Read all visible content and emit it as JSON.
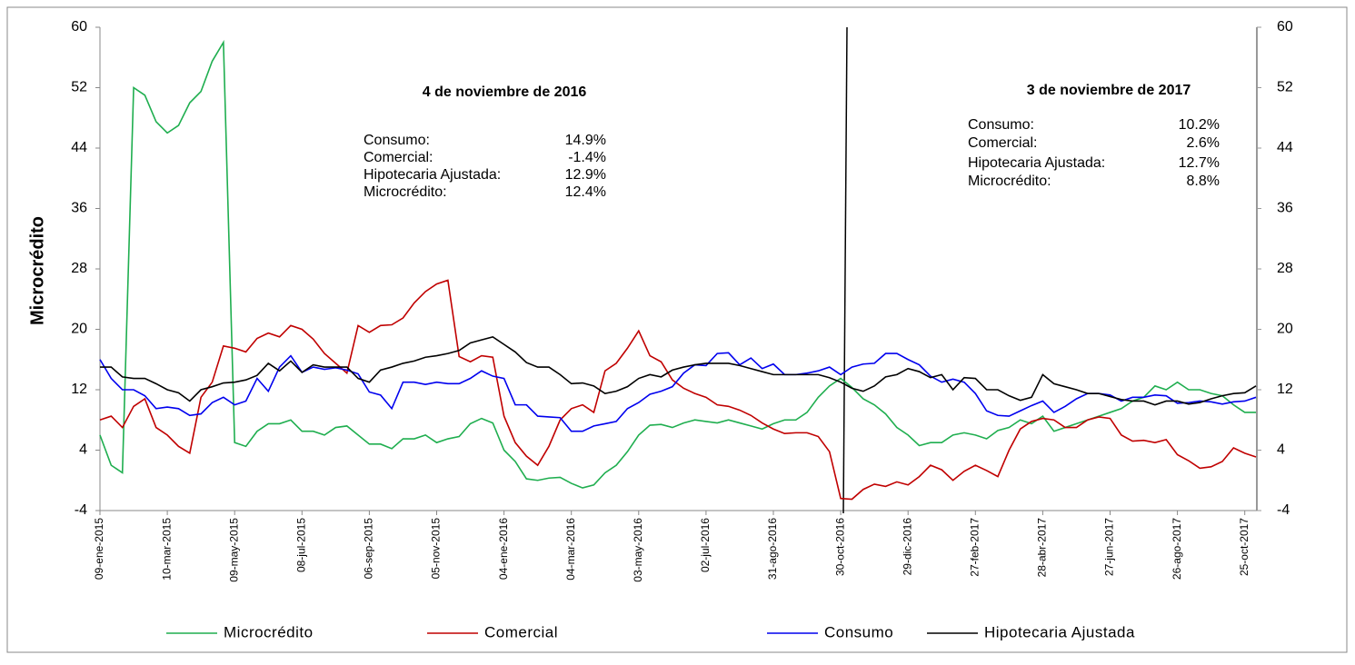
{
  "chart_data": {
    "type": "line",
    "y_label": "Microcrédito",
    "categories": [
      "09-ene-2015",
      null,
      null,
      null,
      null,
      null,
      "10-mar-2015",
      null,
      null,
      null,
      null,
      null,
      "09-may-2015",
      null,
      null,
      null,
      null,
      null,
      "08-jul-2015",
      null,
      null,
      null,
      null,
      null,
      "06-sep-2015",
      null,
      null,
      null,
      null,
      null,
      "05-nov-2015",
      null,
      null,
      null,
      null,
      null,
      "04-ene-2016",
      null,
      null,
      null,
      null,
      null,
      "04-mar-2016",
      null,
      null,
      null,
      null,
      null,
      "03-may-2016",
      null,
      null,
      null,
      null,
      null,
      "02-jul-2016",
      null,
      null,
      null,
      null,
      null,
      "31-ago-2016",
      null,
      null,
      null,
      null,
      null,
      "30-oct-2016",
      null,
      null,
      null,
      null,
      null,
      "29-dic-2016",
      null,
      null,
      null,
      null,
      null,
      "27-feb-2017",
      null,
      null,
      null,
      null,
      null,
      "28-abr-2017",
      null,
      null,
      null,
      null,
      null,
      "27-jun-2017",
      null,
      null,
      null,
      null,
      null,
      "26-ago-2017",
      null,
      null,
      null,
      null,
      null,
      "25-oct-2017",
      null
    ],
    "series": [
      {
        "name": "Microcrédito",
        "color": "#1fae4f",
        "values": [
          6,
          2,
          1,
          52,
          51,
          47.5,
          46,
          47,
          50,
          51.5,
          55.5,
          58,
          5,
          4.5,
          6.5,
          7.5,
          7.5,
          8,
          6.5,
          6.5,
          6,
          7,
          7.2,
          6,
          4.8,
          4.8,
          4.2,
          5.5,
          5.5,
          6,
          5,
          5.5,
          5.8,
          7.5,
          8.2,
          7.6,
          4,
          2.5,
          0.2,
          0,
          0.3,
          0.4,
          -0.4,
          -1,
          -0.6,
          1,
          2,
          3.8,
          6,
          7.3,
          7.4,
          7,
          7.6,
          8,
          7.8,
          7.6,
          8,
          7.6,
          7.2,
          6.8,
          7.5,
          8,
          8,
          9,
          11,
          12.5,
          13.5,
          12.3,
          10.8,
          10,
          8.8,
          7,
          6,
          4.6,
          5,
          5,
          6,
          6.3,
          6,
          5.5,
          6.6,
          7,
          8,
          7.5,
          8.5,
          6.5,
          7,
          7.5,
          8,
          8.5,
          9,
          9.5,
          10.5,
          11,
          12.5,
          12,
          13,
          12,
          12,
          11.5,
          11.2,
          10,
          9,
          9
        ]
      },
      {
        "name": "Comercial",
        "color": "#c00000",
        "values": [
          8,
          8.5,
          7,
          9.8,
          10.8,
          7,
          6,
          4.5,
          3.6,
          11,
          13,
          17.8,
          17.5,
          17,
          18.8,
          19.5,
          19,
          20.5,
          20,
          18.7,
          16.8,
          15.5,
          14.2,
          20.5,
          19.6,
          20.5,
          20.6,
          21.5,
          23.5,
          25,
          26,
          26.5,
          16.4,
          15.7,
          16.5,
          16.3,
          8.5,
          5,
          3.2,
          2,
          4.5,
          8,
          9.5,
          10,
          9,
          14.5,
          15.5,
          17.5,
          19.8,
          16.5,
          15.7,
          13.3,
          12.2,
          11.5,
          11,
          10,
          9.8,
          9.3,
          8.6,
          7.6,
          6.8,
          6.2,
          6.3,
          6.3,
          5.8,
          3.8,
          -2.4,
          -2.5,
          -1.2,
          -0.5,
          -0.8,
          -0.2,
          -0.6,
          0.5,
          2,
          1.4,
          0,
          1.2,
          2,
          1.3,
          0.5,
          4,
          6.8,
          7.8,
          8.2,
          8,
          7,
          7,
          8,
          8.4,
          8.2,
          6,
          5.2,
          5.3,
          5,
          5.4,
          3.4,
          2.6,
          1.6,
          1.8,
          2.5,
          4.3,
          3.6,
          3.1
        ]
      },
      {
        "name": "Consumo",
        "color": "#0000ee",
        "values": [
          16,
          13.5,
          12,
          12,
          11.2,
          9.5,
          9.7,
          9.5,
          8.6,
          8.8,
          10.3,
          11,
          10,
          10.5,
          13.5,
          11.8,
          15,
          16.5,
          14.3,
          15,
          14.7,
          14.9,
          14.6,
          14.1,
          11.7,
          11.3,
          9.5,
          13,
          13,
          12.7,
          13,
          12.8,
          12.8,
          13.5,
          14.5,
          13.8,
          13.5,
          10,
          10,
          8.5,
          8.4,
          8.3,
          6.5,
          6.5,
          7.2,
          7.5,
          7.8,
          9.5,
          10.3,
          11.4,
          11.8,
          12.4,
          14.2,
          15.3,
          15.2,
          16.8,
          16.9,
          15.3,
          16.2,
          14.8,
          15.4,
          14,
          14,
          14.2,
          14.5,
          15,
          14,
          15,
          15.4,
          15.5,
          16.8,
          16.8,
          16,
          15.3,
          13.8,
          13,
          13.4,
          13,
          11.5,
          9.2,
          8.6,
          8.5,
          9.2,
          9.9,
          10.5,
          9,
          9.8,
          10.8,
          11.5,
          11.5,
          11.3,
          10.5,
          11,
          11,
          11.3,
          11.2,
          10.2,
          10.3,
          10.5,
          10.4,
          10.1,
          10.4,
          10.5,
          11
        ]
      },
      {
        "name": "Hipotecaria Ajustada",
        "color": "#000000",
        "values": [
          15,
          15,
          13.7,
          13.5,
          13.5,
          12.8,
          12,
          11.6,
          10.5,
          12,
          12.4,
          12.9,
          13,
          13.3,
          13.9,
          15.5,
          14.5,
          15.8,
          14.3,
          15.3,
          15,
          15,
          15,
          13.5,
          13,
          14.6,
          15,
          15.5,
          15.8,
          16.3,
          16.5,
          16.8,
          17.2,
          18.2,
          18.6,
          19,
          18,
          17,
          15.6,
          15,
          15,
          14,
          12.8,
          12.9,
          12.5,
          11.5,
          11.8,
          12.4,
          13.5,
          14,
          13.7,
          14.6,
          15,
          15.3,
          15.5,
          15.5,
          15.5,
          15.2,
          14.8,
          14.4,
          14,
          14,
          14,
          14,
          14,
          13.6,
          13,
          12.2,
          11.8,
          12.5,
          13.7,
          14,
          14.8,
          14.4,
          13.6,
          14,
          12,
          13.6,
          13.5,
          12,
          12,
          11.2,
          10.6,
          11,
          14,
          12.8,
          12.4,
          12,
          11.5,
          11.5,
          11.1,
          10.7,
          10.5,
          10.5,
          10,
          10.5,
          10.5,
          10.1,
          10.3,
          10.8,
          11.2,
          11.5,
          11.6,
          12.5
        ]
      }
    ],
    "ylim": [
      -4,
      60
    ],
    "yticks": [
      -4,
      4,
      12,
      20,
      28,
      36,
      44,
      52,
      60
    ],
    "y2lim": [
      -4,
      60
    ],
    "y2ticks": [
      -4,
      4,
      12,
      20,
      28,
      36,
      44,
      52,
      60
    ],
    "grid": false,
    "legend": "bottom",
    "annotations": [
      {
        "title": "4 de noviembre de 2016",
        "rows": [
          [
            "Consumo:",
            "14.9%"
          ],
          [
            "Comercial:",
            "-1.4%"
          ],
          [
            "Hipotecaria Ajustada:",
            "12.9%"
          ],
          [
            "Microcrédito:",
            "12.4%"
          ]
        ]
      },
      {
        "title": "3 de noviembre de 2017",
        "rows": [
          [
            "Consumo:",
            "10.2%"
          ],
          [
            "Comercial:",
            "2.6%"
          ],
          [
            "Hipotecaria Ajustada:",
            "12.7%"
          ],
          [
            "Microcrédito:",
            "8.8%"
          ]
        ]
      }
    ]
  }
}
